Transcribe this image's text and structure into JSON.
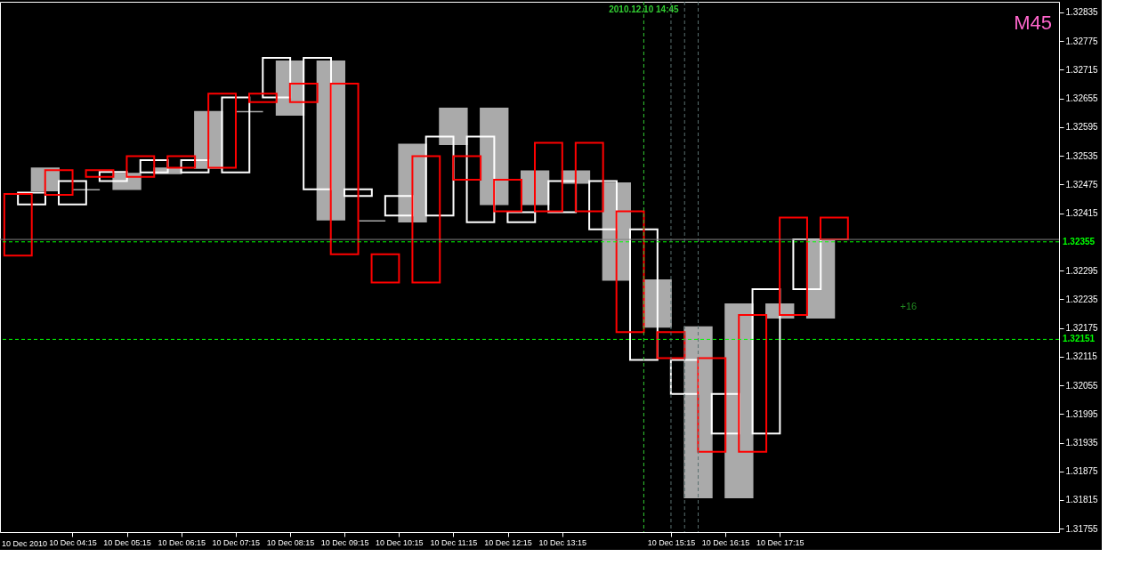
{
  "chart_data": {
    "type": "bar",
    "title": "M45",
    "annotations": [
      "10 Dec 2010",
      "+16"
    ],
    "grid": false,
    "xlim": [
      "2010-12-10T03:00",
      "2010-12-10T22:18"
    ],
    "xticks": [
      {
        "value": "2010-12-10T04:15",
        "label": "10 Dec 04:15"
      },
      {
        "value": "2010-12-10T05:15",
        "label": "10 Dec 05:15"
      },
      {
        "value": "2010-12-10T06:15",
        "label": "10 Dec 06:15"
      },
      {
        "value": "2010-12-10T07:15",
        "label": "10 Dec 07:15"
      },
      {
        "value": "2010-12-10T08:15",
        "label": "10 Dec 08:15"
      },
      {
        "value": "2010-12-10T09:15",
        "label": "10 Dec 09:15"
      },
      {
        "value": "2010-12-10T10:15",
        "label": "10 Dec 10:15"
      },
      {
        "value": "2010-12-10T11:15",
        "label": "10 Dec 11:15"
      },
      {
        "value": "2010-12-10T12:15",
        "label": "10 Dec 12:15"
      },
      {
        "value": "2010-12-10T13:15",
        "label": "10 Dec 13:15"
      },
      {
        "value": "2010-12-10T15:15",
        "label": "10 Dec 15:15"
      },
      {
        "value": "2010-12-10T16:15",
        "label": "10 Dec 16:15"
      },
      {
        "value": "2010-12-10T17:15",
        "label": "10 Dec 17:15"
      }
    ],
    "ylim": [
      1.31748,
      1.32857
    ],
    "yticks": [
      1.32835,
      1.32775,
      1.32715,
      1.32655,
      1.32595,
      1.32535,
      1.32475,
      1.32415,
      1.32295,
      1.32235,
      1.32175,
      1.32115,
      1.32055,
      1.31995,
      1.31935,
      1.31875,
      1.31815,
      1.31755
    ],
    "series": [
      {
        "color": "#aaaaaa",
        "x": [
          "2010-12-10T03:45",
          "2010-12-10T04:30",
          "2010-12-10T05:15",
          "2010-12-10T06:00",
          "2010-12-10T06:45",
          "2010-12-10T07:30",
          "2010-12-10T08:15",
          "2010-12-10T09:00",
          "2010-12-10T09:45",
          "2010-12-10T10:30",
          "2010-12-10T11:15",
          "2010-12-10T12:00",
          "2010-12-10T12:45",
          "2010-12-10T13:30",
          "2010-12-10T14:15",
          "2010-12-10T15:00",
          "2010-12-10T15:45",
          "2010-12-10T16:30",
          "2010-12-10T17:15",
          "2010-12-10T18:00"
        ],
        "base": [
          1.32462,
          1.32464,
          1.32465,
          1.32498,
          1.32509,
          1.32627,
          1.3262,
          1.32401,
          1.32399,
          1.32397,
          1.32559,
          1.32433,
          1.32433,
          1.32478,
          1.32275,
          1.32177,
          1.3182,
          1.3182,
          1.32196,
          1.32196
        ],
        "values": [
          0.00047,
          0,
          0.00033,
          0.00011,
          0.00118,
          0,
          0.00113,
          0.00332,
          0,
          0.00162,
          0.00075,
          0.00201,
          0.0007,
          0.00025,
          0.00203,
          0.00098,
          0.00357,
          0.00405,
          0.00029,
          0.00164
        ]
      },
      {
        "color": "#ffffff",
        "x": [
          "2010-12-10T03:30",
          "2010-12-10T04:15",
          "2010-12-10T05:00",
          "2010-12-10T05:45",
          "2010-12-10T06:30",
          "2010-12-10T07:15",
          "2010-12-10T08:00",
          "2010-12-10T08:45",
          "2010-12-10T09:30",
          "2010-12-10T10:15",
          "2010-12-10T11:00",
          "2010-12-10T11:45",
          "2010-12-10T12:30",
          "2010-12-10T13:15",
          "2010-12-10T14:00",
          "2010-12-10T14:45",
          "2010-12-10T15:30",
          "2010-12-10T16:15",
          "2010-12-10T17:00",
          "2010-12-10T17:45"
        ],
        "base": [
          1.32433,
          1.32433,
          1.32482,
          1.325,
          1.325,
          1.325,
          1.32657,
          1.32465,
          1.32451,
          1.3241,
          1.3241,
          1.32396,
          1.32396,
          1.32417,
          1.32381,
          1.32108,
          1.32037,
          1.31954,
          1.31954,
          1.32256
        ],
        "values": [
          0.00025,
          0.00049,
          0.00019,
          0.00026,
          0.00026,
          0.00157,
          0.00083,
          0.00275,
          0.00014,
          0.00041,
          0.00165,
          0.00179,
          0.00021,
          0.00065,
          0.00101,
          0.00273,
          0.00071,
          0.00083,
          0.00302,
          0.00104
        ]
      },
      {
        "color": "#ff0000",
        "x": [
          "2010-12-10T03:15",
          "2010-12-10T04:00",
          "2010-12-10T04:45",
          "2010-12-10T05:30",
          "2010-12-10T06:15",
          "2010-12-10T07:00",
          "2010-12-10T07:45",
          "2010-12-10T08:30",
          "2010-12-10T09:15",
          "2010-12-10T10:00",
          "2010-12-10T10:45",
          "2010-12-10T11:30",
          "2010-12-10T12:15",
          "2010-12-10T13:00",
          "2010-12-10T13:45",
          "2010-12-10T14:30",
          "2010-12-10T15:15",
          "2010-12-10T16:00",
          "2010-12-10T16:45",
          "2010-12-10T17:30",
          "2010-12-10T18:15"
        ],
        "base": [
          1.32326,
          1.32453,
          1.32491,
          1.32491,
          1.3251,
          1.3251,
          1.32647,
          1.32647,
          1.32329,
          1.3227,
          1.3227,
          1.32485,
          1.32419,
          1.32419,
          1.32419,
          1.32166,
          1.32112,
          1.31916,
          1.31916,
          1.32202,
          1.3236
        ],
        "values": [
          0.00129,
          0.00052,
          0.00014,
          0.00043,
          0.00024,
          0.00155,
          0.00018,
          0.00039,
          0.00357,
          0.00059,
          0.00264,
          0.00049,
          0.00066,
          0.00143,
          0.00143,
          0.00253,
          0.00054,
          0.00196,
          0.00286,
          0.00204,
          0.00046
        ]
      }
    ],
    "ref_lines": [
      {
        "axis": "y",
        "value": 1.3236,
        "color": "#808080",
        "line_style": "solid"
      },
      {
        "axis": "y",
        "value": 1.32355,
        "label": "1.32355",
        "color": "#00ff00",
        "line_style": "dashed"
      },
      {
        "axis": "y",
        "value": 1.32151,
        "label": "1.32151",
        "color": "#00ff00",
        "line_style": "dashed"
      },
      {
        "axis": "x",
        "value": "2010-12-10T14:45",
        "label": "2010.12.10 14:45",
        "color": "#32cd32",
        "line_style": "dashed"
      },
      {
        "axis": "x",
        "value": "2010-12-10T15:15",
        "color": "#5a7070",
        "line_style": "dashed"
      },
      {
        "axis": "x",
        "value": "2010-12-10T15:30",
        "color": "#5a7070",
        "line_style": "dashed"
      },
      {
        "axis": "x",
        "value": "2010-12-10T15:45",
        "color": "#5a7070",
        "line_style": "dashed"
      }
    ]
  }
}
